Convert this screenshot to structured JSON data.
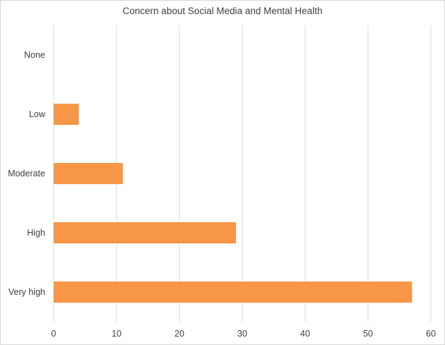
{
  "chart_data": {
    "type": "bar",
    "orientation": "horizontal",
    "title": "Concern about Social Media and Mental Health",
    "categories": [
      "None",
      "Low",
      "Moderate",
      "High",
      "Very high"
    ],
    "values": [
      0,
      4,
      11,
      29,
      57
    ],
    "xlim": [
      0,
      60
    ],
    "xticks": [
      0,
      10,
      20,
      30,
      40,
      50,
      60
    ],
    "grid": true,
    "colors": {
      "bar": "#F79646",
      "grid": "#d9d9d9",
      "text": "#404040"
    }
  }
}
